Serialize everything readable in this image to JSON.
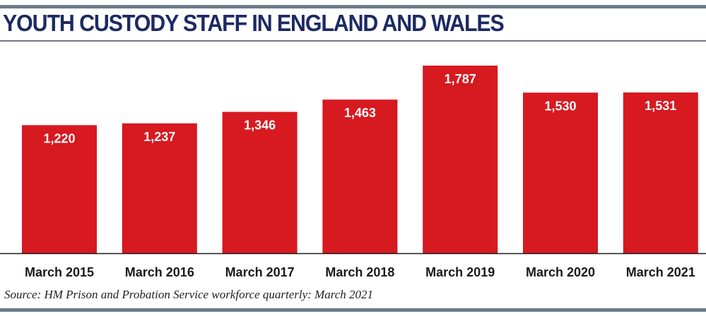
{
  "title": "YOUTH CUSTODY STAFF IN ENGLAND AND WALES",
  "source": "Source: HM Prison and Probation Service workforce quarterly: March 2021",
  "colors": {
    "bar": "#d71920",
    "rule": "#6b7b89",
    "title": "#1c2a63",
    "axis": "#1a1a1a"
  },
  "chart_data": {
    "type": "bar",
    "title": "YOUTH CUSTODY STAFF IN ENGLAND AND WALES",
    "categories": [
      "March 2015",
      "March 2016",
      "March 2017",
      "March 2018",
      "March 2019",
      "March 2020",
      "March 2021"
    ],
    "values": [
      1220,
      1237,
      1346,
      1463,
      1787,
      1530,
      1531
    ],
    "data_labels": [
      "1,220",
      "1,237",
      "1,346",
      "1,463",
      "1,787",
      "1,530",
      "1,531"
    ],
    "xlabel": "",
    "ylabel": "",
    "ylim": [
      0,
      1787
    ],
    "grid": false,
    "legend": "none"
  }
}
